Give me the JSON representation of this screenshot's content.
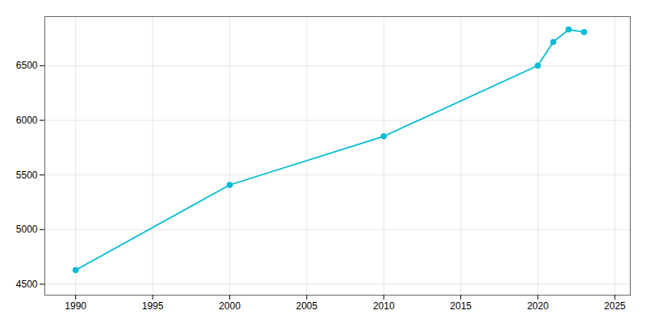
{
  "chart_data": {
    "type": "line",
    "x": [
      1990,
      2000,
      2010,
      2020,
      2021,
      2022,
      2023
    ],
    "values": [
      4629,
      5409,
      5854,
      6501,
      6717,
      6831,
      6808
    ],
    "color": "#00bcd4",
    "marker": "circle",
    "xlim": [
      1988,
      2026
    ],
    "ylim": [
      4400,
      6950
    ],
    "xticks": [
      1990,
      1995,
      2000,
      2005,
      2010,
      2015,
      2020,
      2025
    ],
    "yticks": [
      4500,
      5000,
      5500,
      6000,
      6500
    ],
    "grid": true
  }
}
